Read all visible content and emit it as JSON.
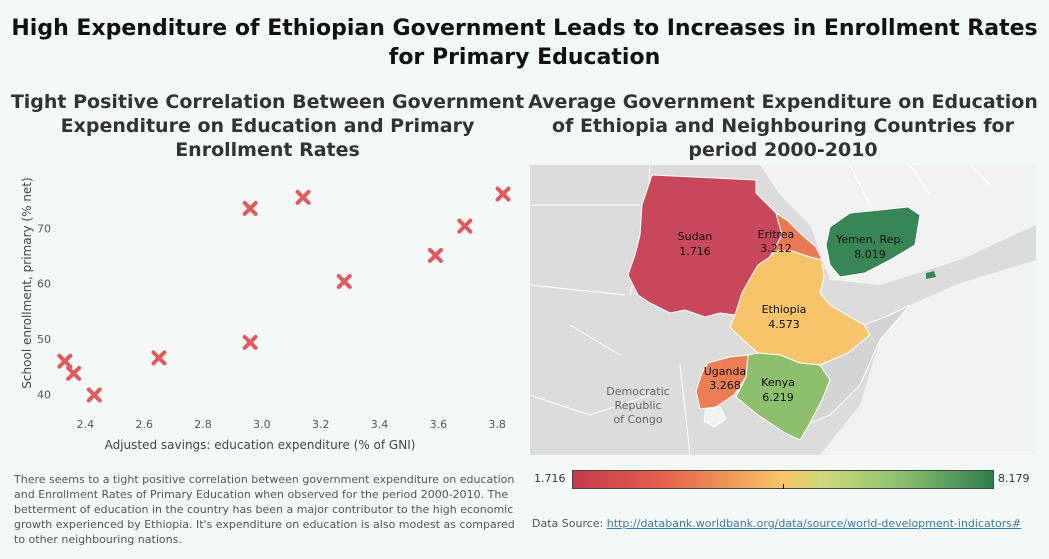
{
  "title": "High Expenditure of Ethiopian Government Leads to Increases in Enrollment Rates for Primary Education",
  "left_panel": {
    "title": "Tight Positive Correlation Between Government Expenditure on Education and Primary Enrollment Rates"
  },
  "right_panel": {
    "title": "Average Government Expenditure on Education of Ethiopia and Neighbouring Countries for period 2000-2010"
  },
  "chart_data": [
    {
      "type": "scatter",
      "title": "Tight Positive Correlation Between Government Expenditure on Education and Primary Enrollment Rates",
      "xlabel": "Adjusted savings: education expenditure (% of GNI)",
      "ylabel": "School enrollment, primary (% net)",
      "xlim": [
        2.3,
        3.83
      ],
      "ylim": [
        37,
        80
      ],
      "xticks": [
        "2.4",
        "2.6",
        "2.8",
        "3.0",
        "3.2",
        "3.4",
        "3.6",
        "3.8"
      ],
      "yticks": [
        "40",
        "50",
        "60",
        "70"
      ],
      "marker": "x",
      "marker_color": "#e05a5f",
      "x": [
        2.33,
        2.36,
        2.43,
        2.65,
        2.96,
        2.96,
        3.14,
        3.28,
        3.59,
        3.69,
        3.82
      ],
      "y": [
        46.0,
        43.8,
        39.9,
        46.6,
        49.4,
        73.6,
        75.6,
        60.4,
        65.1,
        70.4,
        76.2
      ]
    },
    {
      "type": "choropleth",
      "title": "Average Government Expenditure on Education of Ethiopia and Neighbouring Countries for period 2000-2010",
      "colorscale": [
        "#c8394d",
        "#f7c766",
        "#2e7d4d"
      ],
      "color_range": [
        "1.716",
        "8.179"
      ],
      "countries": [
        {
          "name": "Sudan",
          "value": "1.716",
          "color": "#c8475a"
        },
        {
          "name": "Eritrea",
          "value": "3.212",
          "color": "#e97a55"
        },
        {
          "name": "Yemen, Rep.",
          "value": "8.019",
          "color": "#388656"
        },
        {
          "name": "Ethiopia",
          "value": "4.573",
          "color": "#f7c36b"
        },
        {
          "name": "Uganda",
          "value": "3.268",
          "color": "#ec7e56"
        },
        {
          "name": "Kenya",
          "value": "6.219",
          "color": "#8dbf6c"
        }
      ],
      "other_labels": [
        "Democratic",
        "Republic",
        "of Congo"
      ]
    }
  ],
  "colorbar": {
    "min_label": "1.716",
    "max_label": "8.179"
  },
  "description": "There seems to a tight positive correlation between government expenditure on education and Enrollment Rates of Primary Education when observed for the period 2000-2010. The betterment of education in the country has been a major contributor to the high economic growth experienced by Ethiopia. It's expenditure on education is also modest as compared to other neighbouring nations.",
  "source": {
    "prefix": "Data Source: ",
    "url": "http://databank.worldbank.org/data/source/world-development-indicators#"
  }
}
